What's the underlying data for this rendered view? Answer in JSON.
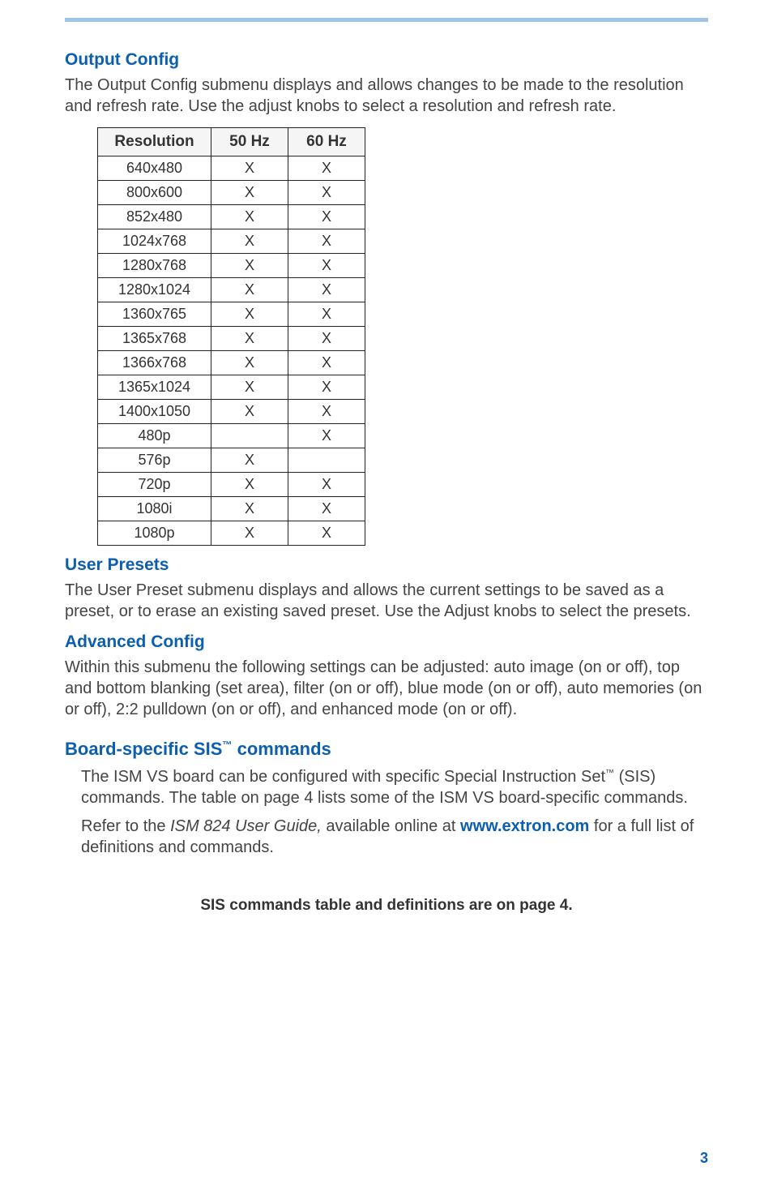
{
  "page": {
    "number": "3",
    "rule_color": "#9fc4e6"
  },
  "output_config": {
    "heading": "Output Config",
    "para": "The Output Config submenu displays and allows changes to be made to the resolution and refresh rate. Use the adjust knobs to select a resolution and refresh rate."
  },
  "res_table": {
    "columns": [
      "Resolution",
      "50 Hz",
      "60 Hz"
    ],
    "rows": [
      [
        "640x480",
        "X",
        "X"
      ],
      [
        "800x600",
        "X",
        "X"
      ],
      [
        "852x480",
        "X",
        "X"
      ],
      [
        "1024x768",
        "X",
        "X"
      ],
      [
        "1280x768",
        "X",
        "X"
      ],
      [
        "1280x1024",
        "X",
        "X"
      ],
      [
        "1360x765",
        "X",
        "X"
      ],
      [
        "1365x768",
        "X",
        "X"
      ],
      [
        "1366x768",
        "X",
        "X"
      ],
      [
        "1365x1024",
        "X",
        "X"
      ],
      [
        "1400x1050",
        "X",
        "X"
      ],
      [
        "480p",
        "",
        "X"
      ],
      [
        "576p",
        "X",
        ""
      ],
      [
        "720p",
        "X",
        "X"
      ],
      [
        "1080i",
        "X",
        "X"
      ],
      [
        "1080p",
        "X",
        "X"
      ]
    ]
  },
  "user_presets": {
    "heading": "User Presets",
    "para": "The User Preset submenu displays and allows the current settings to be saved as a preset, or to erase an existing saved preset. Use the Adjust knobs to select the presets."
  },
  "advanced_config": {
    "heading": "Advanced Config",
    "para": "Within this submenu the following settings can be adjusted: auto image (on or off), top and bottom blanking (set area), filter (on or off), blue mode (on or off), auto memories (on or off), 2:2 pulldown (on or off), and enhanced mode (on or off)."
  },
  "board_sis": {
    "heading_pre": "Board-specific SIS",
    "heading_post": " commands",
    "para1_pre": "The ISM VS board can be configured with specific Special Instruction Set",
    "para1_post": " (SIS) commands. The table on page 4 lists some of the ISM VS board-specific commands.",
    "para2_pre": "Refer to the ",
    "para2_ital": "ISM 824 User Guide,",
    "para2_mid": " available online at ",
    "para2_link": "www.extron.com",
    "para2_post": " for a full list of definitions and commands.",
    "footer": "SIS commands table and definitions are on page 4."
  }
}
